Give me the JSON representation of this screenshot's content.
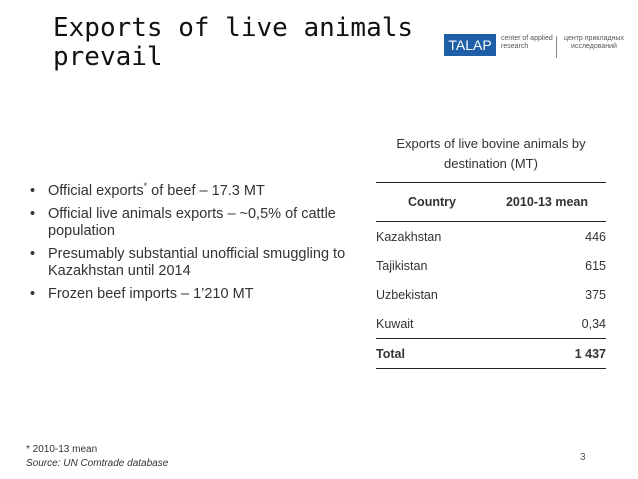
{
  "slide": {
    "title_lines": [
      "Exports of live animals",
      "prevail"
    ],
    "page_number": "3"
  },
  "logo": {
    "name": "TALAP",
    "brand_color": "#1f5fa8",
    "subtitle_en": "center of applied research",
    "subtitle_ru": "центр прикладных исследований"
  },
  "bullets": [
    {
      "text_before": "Official exports",
      "sup": "*",
      "text_after": " of beef – 17.3 MT"
    },
    {
      "text_before": "Official live animals exports – ~0,5% of cattle population",
      "sup": "",
      "text_after": ""
    },
    {
      "text_before": "Presumably substantial unofficial smuggling to Kazakhstan until 2014",
      "sup": "",
      "text_after": ""
    },
    {
      "text_before": "Frozen beef imports – 1’210 MT",
      "sup": "",
      "text_after": ""
    }
  ],
  "table": {
    "caption": "Exports of live bovine animals by destination (MT)",
    "headers": [
      "Country",
      "2010-13 mean"
    ],
    "rows": [
      {
        "country": "Kazakhstan",
        "value": "446"
      },
      {
        "country": "Tajikistan",
        "value": "615"
      },
      {
        "country": "Uzbekistan",
        "value": "375"
      },
      {
        "country": "Kuwait",
        "value": "0,34"
      }
    ],
    "total": {
      "label": "Total",
      "value": "1 437"
    }
  },
  "footer": {
    "footnote": "* 2010-13 mean",
    "source": "Source: UN Comtrade database"
  }
}
